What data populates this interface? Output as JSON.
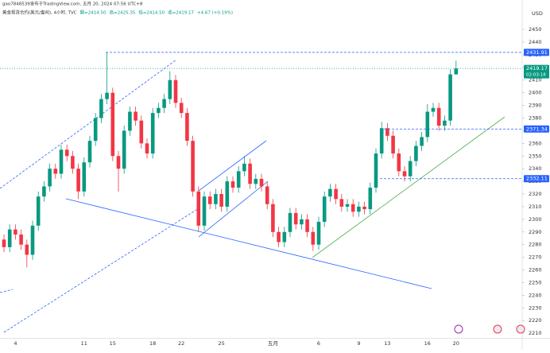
{
  "chart_data": {
    "type": "candlestick",
    "title": "gao7848539发布于TradingView.com, 五月 20, 2024 07:56 UTC+8",
    "subtitle": "黄金现货合约(美元/盎司), 4小时, TVC",
    "ohlc_legend": [
      "開=2414.50",
      "高=2425.35",
      "低=2414.50",
      "收=2419.17"
    ],
    "change": "+4.67 (+0.19%)",
    "currency": "USD",
    "countdown": "02:03:18",
    "up_color": "#089981",
    "down_color": "#f23645",
    "level_color": "#2962ff",
    "categories": [
      null,
      null,
      "4",
      null,
      null,
      null,
      null,
      null,
      null,
      null,
      null,
      null,
      null,
      null,
      "11",
      null,
      null,
      null,
      null,
      "15",
      null,
      null,
      null,
      null,
      null,
      null,
      "18",
      null,
      null,
      null,
      null,
      "22",
      null,
      null,
      null,
      null,
      null,
      null,
      "25",
      null,
      null,
      null,
      null,
      null,
      null,
      null,
      null,
      "五月",
      null,
      null,
      null,
      null,
      null,
      null,
      null,
      "6",
      null,
      null,
      null,
      null,
      null,
      null,
      "9",
      null,
      null,
      null,
      null,
      "13",
      null,
      null,
      null,
      null,
      null,
      null,
      "16",
      null,
      null,
      null,
      null,
      "20"
    ],
    "open": [
      2284,
      2278,
      2292,
      2288,
      2280,
      2272,
      2295,
      2318,
      2326,
      2340,
      2336,
      2355,
      2350,
      2340,
      2322,
      2345,
      2362,
      2380,
      2395,
      2400,
      2350,
      2340,
      2370,
      2385,
      2378,
      2360,
      2352,
      2384,
      2388,
      2395,
      2410,
      2392,
      2384,
      2362,
      2322,
      2295,
      2318,
      2312,
      2320,
      2310,
      2330,
      2325,
      2338,
      2344,
      2328,
      2332,
      2326,
      2312,
      2290,
      2282,
      2290,
      2305,
      2296,
      2300,
      2290,
      2280,
      2298,
      2318,
      2324,
      2316,
      2310,
      2312,
      2306,
      2310,
      2308,
      2325,
      2352,
      2372,
      2366,
      2352,
      2338,
      2334,
      2346,
      2358,
      2365,
      2385,
      2388,
      2374,
      2378,
      2414.5
    ],
    "high": [
      2288,
      2296,
      2296,
      2292,
      2284,
      2299,
      2322,
      2330,
      2344,
      2344,
      2359,
      2359,
      2354,
      2344,
      2349,
      2366,
      2384,
      2399,
      2431.91,
      2404,
      2354,
      2374,
      2389,
      2389,
      2382,
      2364,
      2388,
      2392,
      2399,
      2417,
      2414,
      2396,
      2388,
      2366,
      2326,
      2322,
      2322,
      2324,
      2324,
      2334,
      2334,
      2342,
      2350,
      2348,
      2336,
      2336,
      2330,
      2316,
      2294,
      2294,
      2309,
      2309,
      2304,
      2304,
      2294,
      2302,
      2322,
      2328,
      2328,
      2320,
      2316,
      2316,
      2314,
      2314,
      2329,
      2356,
      2377,
      2376,
      2370,
      2356,
      2342,
      2350,
      2362,
      2369,
      2391,
      2392,
      2392,
      2382,
      2418.5,
      2425.35
    ],
    "low": [
      2274,
      2274,
      2284,
      2276,
      2262,
      2268,
      2291,
      2314,
      2322,
      2332,
      2332,
      2346,
      2336,
      2316,
      2318,
      2341,
      2358,
      2376,
      2391,
      2346,
      2322,
      2336,
      2366,
      2374,
      2356,
      2348,
      2348,
      2380,
      2384,
      2391,
      2388,
      2380,
      2358,
      2318,
      2290,
      2291,
      2308,
      2308,
      2306,
      2306,
      2321,
      2321,
      2334,
      2324,
      2324,
      2322,
      2308,
      2286,
      2278,
      2278,
      2286,
      2292,
      2292,
      2286,
      2275,
      2276,
      2294,
      2314,
      2312,
      2306,
      2306,
      2302,
      2302,
      2304,
      2304,
      2321,
      2348,
      2362,
      2348,
      2334,
      2330,
      2330,
      2342,
      2354,
      2361,
      2381,
      2370,
      2370,
      2374,
      2414.5
    ],
    "close": [
      2278,
      2292,
      2288,
      2280,
      2272,
      2295,
      2318,
      2326,
      2340,
      2336,
      2355,
      2350,
      2340,
      2322,
      2345,
      2362,
      2380,
      2395,
      2400,
      2350,
      2340,
      2370,
      2385,
      2378,
      2360,
      2352,
      2384,
      2388,
      2395,
      2410,
      2392,
      2384,
      2362,
      2322,
      2295,
      2318,
      2312,
      2320,
      2310,
      2330,
      2325,
      2338,
      2344,
      2328,
      2332,
      2326,
      2312,
      2290,
      2282,
      2290,
      2305,
      2296,
      2300,
      2290,
      2280,
      2298,
      2318,
      2324,
      2316,
      2310,
      2312,
      2306,
      2310,
      2308,
      2325,
      2352,
      2372,
      2366,
      2352,
      2338,
      2334,
      2346,
      2358,
      2365,
      2385,
      2388,
      2374,
      2378,
      2414.5,
      2419.17
    ],
    "levels": [
      2431.91,
      2371.34,
      2332.11
    ],
    "ylim": [
      2206,
      2456
    ],
    "yticks": [
      2210,
      2220,
      2230,
      2240,
      2250,
      2260,
      2270,
      2280,
      2290,
      2300,
      2310,
      2320,
      2330,
      2340,
      2350,
      2360,
      2370,
      2380,
      2390,
      2400,
      2410,
      2420,
      2430,
      2440,
      2450
    ],
    "grid": false
  }
}
